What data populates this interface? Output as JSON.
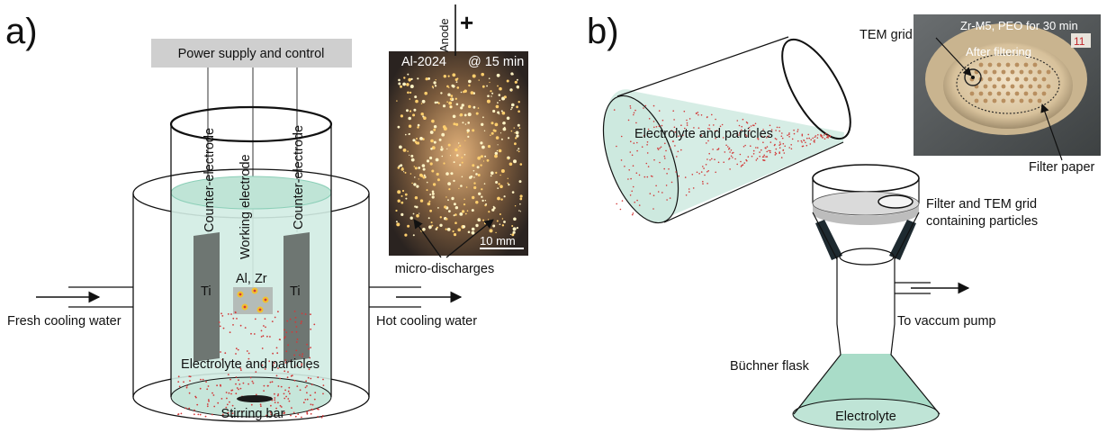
{
  "panel_a": {
    "label": "a)",
    "power_supply": "Power supply and control",
    "counter_electrode_left": "Counter-electrode",
    "working_electrode": "Working electrode",
    "counter_electrode_right": "Counter-electrode",
    "ti_left": "Ti",
    "ti_right": "Ti",
    "sample": "Al, Zr",
    "fresh_water": "Fresh cooling water",
    "hot_water": "Hot cooling water",
    "electrolyte": "Electrolyte and particles",
    "stirring_bar": "Stirring bar",
    "photo": {
      "anode": "Anode",
      "plus": "+",
      "alloy": "Al-2024",
      "time": "@ 15 min",
      "scale": "10 mm",
      "caption": "micro-discharges"
    }
  },
  "panel_b": {
    "label": "b)",
    "electrolyte_particles": "Electrolyte and particles",
    "filter_line1": "Filter and TEM grid",
    "filter_line2": "containing particles",
    "vacuum": "To vaccum pump",
    "buchner": "Büchner flask",
    "electrolyte": "Electrolyte",
    "photo": {
      "title": "Zr-M5, PEO for 30 min",
      "after_filtering": "After filtering",
      "tem_grid": "TEM grid",
      "filter_paper": "Filter paper"
    }
  },
  "colors": {
    "liquid": "#d2ece3",
    "liquid_edge": "#8ccfb8",
    "particle": "#d23a3a",
    "electrode": "#6e7672",
    "power_box": "#cfcfcf"
  }
}
